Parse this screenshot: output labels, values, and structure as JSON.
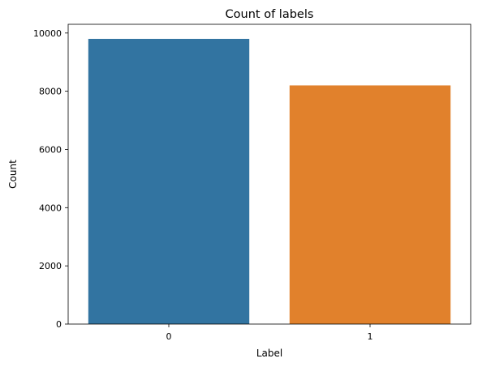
{
  "chart_data": {
    "type": "bar",
    "title": "Count of labels",
    "xlabel": "Label",
    "ylabel": "Count",
    "categories": [
      "0",
      "1"
    ],
    "values": [
      9800,
      8200
    ],
    "colors": [
      "#3274a1",
      "#e1812c"
    ],
    "ylim": [
      0,
      10300
    ],
    "yticks": [
      0,
      2000,
      4000,
      6000,
      8000,
      10000
    ],
    "grid": false,
    "legend": "none"
  }
}
